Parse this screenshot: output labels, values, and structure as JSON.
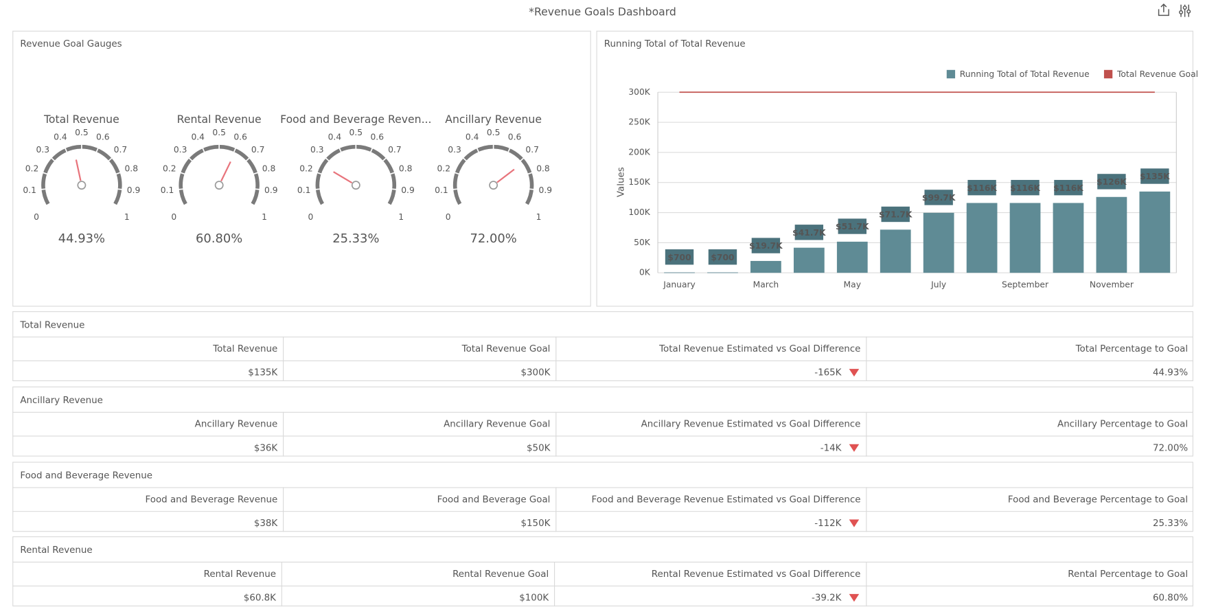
{
  "header": {
    "title": "*Revenue Goals Dashboard"
  },
  "chart_data": [
    {
      "type": "gauge",
      "title": "Revenue Goal Gauges",
      "categories": [
        "Total Revenue",
        "Rental Revenue",
        "Food and Beverage Reven...",
        "Ancillary Revenue"
      ],
      "values": [
        0.4493,
        0.608,
        0.2533,
        0.72
      ],
      "value_labels": [
        "44.93%",
        "60.80%",
        "25.33%",
        "72.00%"
      ],
      "ylim": [
        0,
        1
      ],
      "yticks": [
        0,
        0.1,
        0.2,
        0.3,
        0.4,
        0.5,
        0.6,
        0.7,
        0.8,
        0.9,
        1
      ],
      "color": "#e8747c",
      "scale_color": "#7a7a7a"
    },
    {
      "type": "bar",
      "title": "Running Total of Total Revenue",
      "y_label": "Values",
      "categories": [
        "January",
        null,
        "March",
        null,
        "May",
        null,
        "July",
        null,
        "September",
        null,
        "November",
        null
      ],
      "series": [
        {
          "name": "Running Total of Total Revenue",
          "type": "bar",
          "color": "#5f8b95",
          "values": [
            700,
            700,
            19700,
            41700,
            51700,
            71700,
            99700,
            116000,
            116000,
            116000,
            126000,
            135000
          ],
          "value_labels": [
            "$700",
            "$700",
            "$19.7K",
            "$41.7K",
            "$51.7K",
            "$71.7K",
            "$99.7K",
            "$116K",
            "$116K",
            "$116K",
            "$126K",
            "$135K"
          ]
        },
        {
          "name": "Total Revenue Goal",
          "type": "line",
          "color": "#c0504d",
          "values": [
            300000,
            300000,
            300000,
            300000,
            300000,
            300000,
            300000,
            300000,
            300000,
            300000,
            300000,
            300000
          ]
        }
      ],
      "ylim": [
        0,
        300000
      ],
      "yticks": [
        {
          "value": 0,
          "label": "0K"
        },
        {
          "value": 50000,
          "label": "50K"
        },
        {
          "value": 100000,
          "label": "100K"
        },
        {
          "value": 150000,
          "label": "150K"
        },
        {
          "value": 200000,
          "label": "200K"
        },
        {
          "value": 250000,
          "label": "250K"
        },
        {
          "value": 300000,
          "label": "300K"
        }
      ],
      "grid": true,
      "legend": "top-right"
    }
  ],
  "tables": [
    {
      "title": "Total Revenue",
      "columns": [
        "Total Revenue",
        "Total Revenue Goal",
        "Total Revenue Estimated vs Goal Difference",
        "Total Percentage to Goal"
      ],
      "rows": [
        [
          "$135K",
          "$300K",
          "-165K",
          "44.93%"
        ]
      ]
    },
    {
      "title": "Ancillary Revenue",
      "columns": [
        "Ancillary Revenue",
        "Ancillary Revenue Goal",
        "Ancillary Revenue Estimated vs Goal Difference",
        "Ancillary Percentage to Goal"
      ],
      "rows": [
        [
          "$36K",
          "$50K",
          "-14K",
          "72.00%"
        ]
      ]
    },
    {
      "title": "Food and Beverage Revenue",
      "columns": [
        "Food and Beverage Revenue",
        "Food and Beverage Goal",
        "Food and Beverage Revenue Estimated vs Goal Difference",
        "Food and Beverage Percentage to Goal"
      ],
      "rows": [
        [
          "$38K",
          "$150K",
          "-112K",
          "25.33%"
        ]
      ]
    },
    {
      "title": "Rental Revenue",
      "columns": [
        "Rental Revenue",
        "Rental Revenue Goal",
        "Rental Revenue Estimated vs Goal Difference",
        "Rental Percentage to Goal"
      ],
      "rows": [
        [
          "$60.8K",
          "$100K",
          "-39.2K",
          "60.80%"
        ]
      ]
    }
  ]
}
